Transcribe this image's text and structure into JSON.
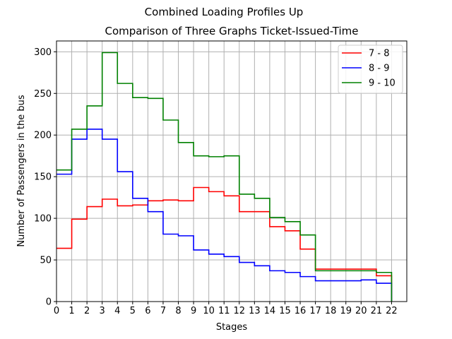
{
  "chart_data": {
    "type": "line",
    "suptitle": "Combined Loading Profiles Up",
    "title": "Comparison of Three Graphs Ticket-Issued-Time",
    "xlabel": "Stages",
    "ylabel": "Number of Passengers in the bus",
    "x": [
      0,
      1,
      2,
      3,
      4,
      5,
      6,
      7,
      8,
      9,
      10,
      11,
      12,
      13,
      14,
      15,
      16,
      17,
      18,
      19,
      20,
      21,
      22
    ],
    "xlim": [
      0,
      23
    ],
    "ylim": [
      0,
      313
    ],
    "yticks": [
      0,
      50,
      100,
      150,
      200,
      250,
      300
    ],
    "grid": true,
    "legend_position": "top-right",
    "step": "post",
    "series": [
      {
        "name": "7 - 8",
        "color": "#ff0000",
        "values": [
          64,
          99,
          114,
          123,
          115,
          116,
          121,
          122,
          121,
          137,
          132,
          127,
          108,
          108,
          90,
          85,
          63,
          39,
          39,
          39,
          39,
          31,
          0
        ]
      },
      {
        "name": "8 - 9",
        "color": "#0000ff",
        "values": [
          153,
          195,
          207,
          195,
          156,
          124,
          108,
          81,
          79,
          62,
          57,
          54,
          47,
          43,
          37,
          35,
          30,
          25,
          25,
          25,
          26,
          22,
          0
        ]
      },
      {
        "name": "9 - 10",
        "color": "#008000",
        "values": [
          158,
          207,
          235,
          299,
          262,
          245,
          244,
          218,
          191,
          175,
          174,
          175,
          129,
          124,
          101,
          96,
          80,
          37,
          37,
          37,
          37,
          35,
          0
        ]
      }
    ]
  }
}
